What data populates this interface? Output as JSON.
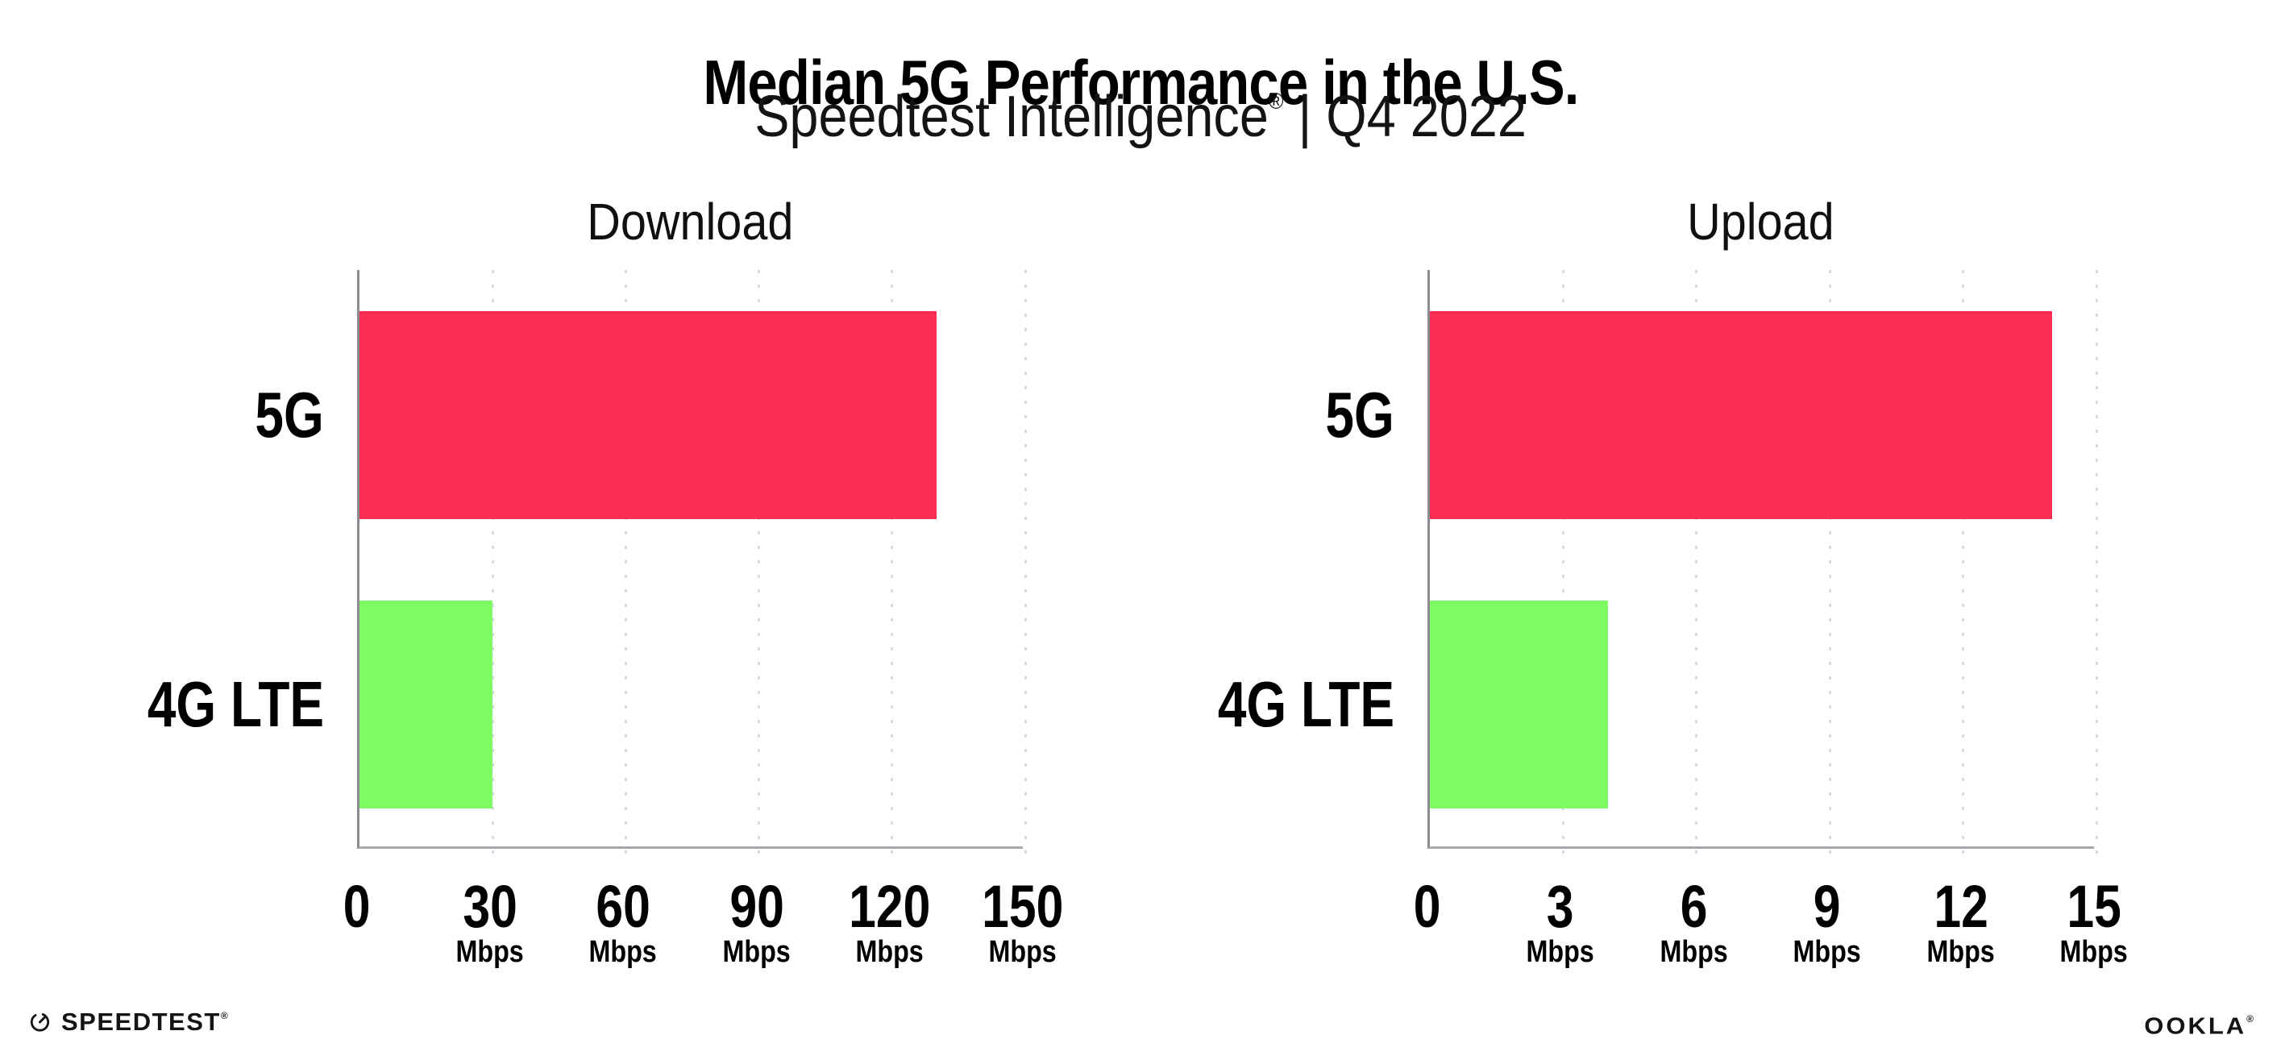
{
  "header": {
    "title": "Median 5G Performance in the U.S.",
    "subtitle_brand": "Speedtest Intelligence",
    "subtitle_reg": "®",
    "subtitle_rest": " | Q4 2022"
  },
  "chart_data": [
    {
      "type": "bar",
      "orientation": "horizontal",
      "title": "Download",
      "categories": [
        "5G",
        "4G LTE"
      ],
      "values": [
        130,
        30
      ],
      "unit": "Mbps",
      "xlabel": "",
      "ylabel": "",
      "xlim": [
        0,
        150
      ],
      "xticks": [
        0,
        30,
        60,
        90,
        120,
        150
      ],
      "bar_colors": [
        "#fd2e56",
        "#7efc66"
      ],
      "grid": "dotted vertical gridlines at each tick",
      "legend": "none"
    },
    {
      "type": "bar",
      "orientation": "horizontal",
      "title": "Upload",
      "categories": [
        "5G",
        "4G LTE"
      ],
      "values": [
        14,
        4
      ],
      "unit": "Mbps",
      "xlabel": "",
      "ylabel": "",
      "xlim": [
        0,
        15
      ],
      "xticks": [
        0,
        3,
        6,
        9,
        12,
        15
      ],
      "bar_colors": [
        "#fd2e56",
        "#7efc66"
      ],
      "grid": "dotted vertical gridlines at each tick",
      "legend": "none"
    }
  ],
  "colors": {
    "bar_5g": "#fd2e56",
    "bar_4g_lte": "#7efc66",
    "axis_line": "#8b8b91",
    "baseline": "#a6a6ac",
    "gridline": "#d9d9e3",
    "text": "#000000"
  },
  "footer": {
    "speedtest_label": "SPEEDTEST",
    "speedtest_mark": "®",
    "ookla_label": "OOKLA",
    "ookla_mark": "®"
  }
}
